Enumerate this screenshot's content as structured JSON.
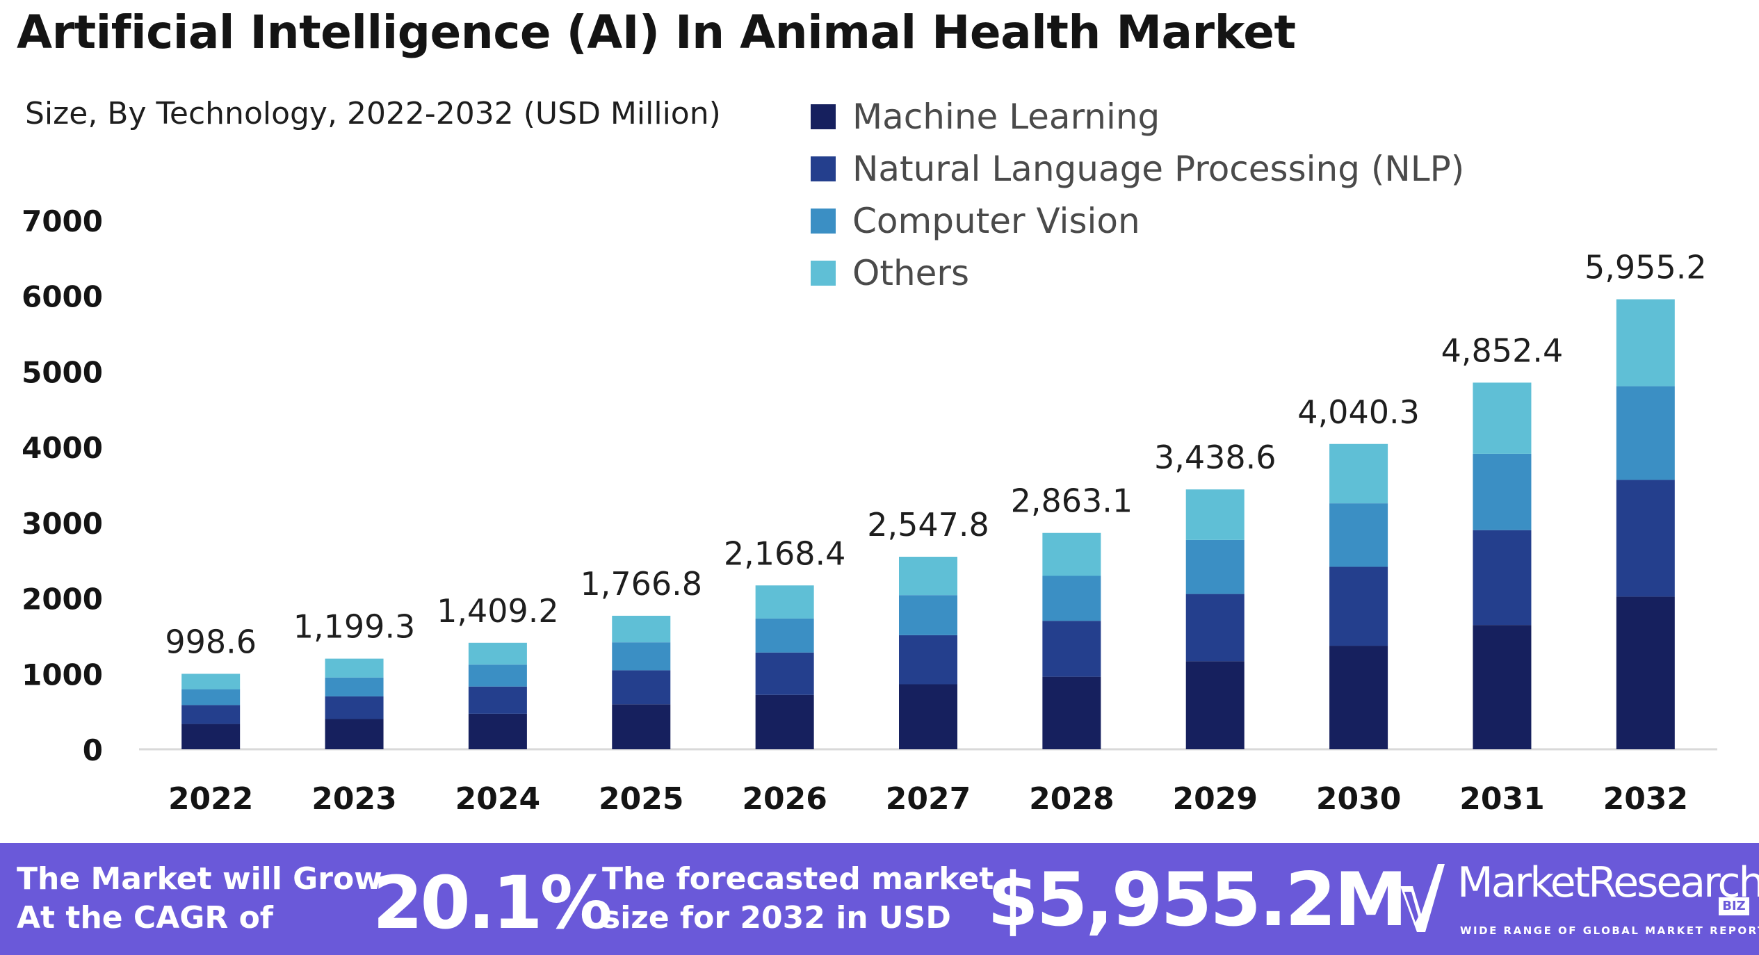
{
  "chart_data": {
    "type": "bar",
    "stacked": true,
    "title": "Artificial Intelligence (AI) In Animal Health Market",
    "subtitle": "Size, By Technology, 2022-2032 (USD Million)",
    "xlabel": "",
    "ylabel": "",
    "ylim": [
      0,
      7000
    ],
    "yticks": [
      "0",
      "1000",
      "2000",
      "3000",
      "4000",
      "5000",
      "6000",
      "7000"
    ],
    "categories": [
      "2022",
      "2023",
      "2024",
      "2025",
      "2026",
      "2027",
      "2028",
      "2029",
      "2030",
      "2031",
      "2032"
    ],
    "totals": [
      998.6,
      1199.3,
      1409.2,
      1766.8,
      2168.4,
      2547.8,
      2863.1,
      3438.6,
      4040.3,
      4852.4,
      5955.2
    ],
    "total_labels": [
      "998.6",
      "1,199.3",
      "1,409.2",
      "1,766.8",
      "2,168.4",
      "2,547.8",
      "2,863.1",
      "3,438.6",
      "4,040.3",
      "4,852.4",
      "5,955.2"
    ],
    "series": [
      {
        "name": "Machine Learning",
        "color": "#16205e",
        "values": [
          335,
          400,
          470,
          595,
          720,
          860,
          960,
          1165,
          1370,
          1645,
          2020
        ]
      },
      {
        "name": "Natural Language Processing (NLP)",
        "color": "#243f8d",
        "values": [
          250,
          300,
          360,
          450,
          560,
          650,
          740,
          890,
          1045,
          1255,
          1545
        ]
      },
      {
        "name": "Computer Vision",
        "color": "#3b8fc4",
        "values": [
          210,
          250,
          290,
          370,
          450,
          530,
          595,
          715,
          840,
          1010,
          1240
        ]
      },
      {
        "name": "Others",
        "color": "#5fbfd6",
        "values": [
          203.6,
          249.3,
          289.2,
          351.8,
          438.4,
          507.8,
          568.1,
          668.6,
          785.3,
          942.4,
          1150.2
        ]
      }
    ],
    "legend_position": "top-right",
    "grid": false
  },
  "footer": {
    "grow_text_line1": "The Market will Grow",
    "grow_text_line2": "At the CAGR of",
    "cagr": "20.1%",
    "forecast_text_line1": "The forecasted market",
    "forecast_text_line2": "size for 2032 in USD",
    "forecast_value": "$5,955.2M",
    "brand_name": "MarketResearch",
    "brand_badge": "BIZ",
    "brand_tagline": "WIDE RANGE OF GLOBAL MARKET REPORTS"
  },
  "colors": {
    "footer_bg": "#6a59d9",
    "axis_text": "#141414"
  }
}
